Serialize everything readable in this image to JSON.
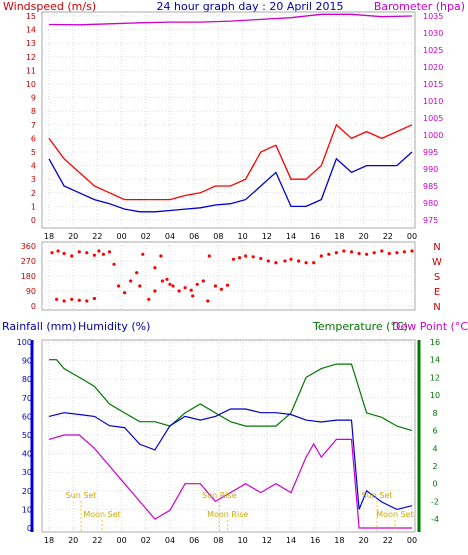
{
  "chart_data": [
    {
      "type": "line",
      "title": "24 hour graph day : 20 April 2015",
      "left_axis_label": "Windspeed (m/s)",
      "right_axis_label": "Barometer (hpa)",
      "x_tick_labels": [
        "18",
        "20",
        "22",
        "00",
        "02",
        "04",
        "06",
        "08",
        "10",
        "12",
        "14",
        "16",
        "18",
        "20",
        "22",
        "00"
      ],
      "left_ticks": [
        0,
        1,
        2,
        3,
        4,
        5,
        6,
        7,
        8,
        9,
        10,
        11,
        12,
        13,
        14,
        15
      ],
      "right_ticks": [
        975,
        980,
        985,
        990,
        995,
        1000,
        1005,
        1010,
        1015,
        1020,
        1025,
        1030,
        1035
      ],
      "ylim_left": [
        0,
        15
      ],
      "ylim_right": [
        975,
        1035
      ],
      "colors": {
        "gust": "#ff0000",
        "speed": "#0000cc",
        "barometer": "#cc00cc"
      },
      "series": [
        {
          "name": "Windspeed",
          "color": "#0000cc",
          "x": [
            0,
            1,
            2,
            3,
            4,
            5,
            6,
            7,
            8,
            9,
            10,
            11,
            12,
            13,
            14,
            15,
            16,
            17,
            18,
            19,
            20,
            21,
            22,
            23,
            24
          ],
          "y": [
            4.5,
            2.5,
            2,
            1.5,
            1.2,
            0.8,
            0.6,
            0.6,
            0.7,
            0.8,
            0.9,
            1.1,
            1.2,
            1.5,
            2.5,
            3.5,
            1,
            1,
            1.5,
            4.5,
            3.5,
            4,
            4,
            4,
            5
          ]
        },
        {
          "name": "Gust",
          "color": "#ff0000",
          "x": [
            0,
            1,
            2,
            3,
            4,
            5,
            6,
            7,
            8,
            9,
            10,
            11,
            12,
            13,
            14,
            15,
            16,
            17,
            18,
            19,
            20,
            21,
            22,
            23,
            24
          ],
          "y": [
            6,
            4.5,
            3.5,
            2.5,
            2,
            1.5,
            1.5,
            1.5,
            1.5,
            1.8,
            2,
            2.5,
            2.5,
            3,
            5,
            5.5,
            3,
            3,
            4,
            7,
            6,
            6.5,
            6,
            6.5,
            7
          ]
        },
        {
          "name": "Barometer",
          "color": "#cc00cc",
          "x": [
            0,
            2,
            4,
            6,
            8,
            10,
            12,
            14,
            16,
            18,
            20,
            22,
            24
          ],
          "y": [
            1032.5,
            1032.4,
            1032.7,
            1033,
            1033.2,
            1033.2,
            1033.5,
            1034,
            1034.5,
            1035.5,
            1035.5,
            1034.8,
            1035
          ]
        }
      ]
    },
    {
      "type": "scatter",
      "y_tick_labels": [
        360,
        270,
        180,
        90,
        0
      ],
      "direction_labels": [
        "N",
        "W",
        "S",
        "E",
        "N"
      ],
      "ylim": [
        0,
        360
      ],
      "series": [
        {
          "name": "Wind direction",
          "color": "#ff0000",
          "x": [
            0.2,
            0.6,
            1,
            1.5,
            2,
            2.5,
            3,
            3.3,
            3.6,
            4,
            4.3,
            4.6,
            5,
            5.4,
            5.8,
            6.2,
            6.6,
            7,
            7.4,
            7.8,
            8.2,
            8.6,
            9,
            9.4,
            9.8,
            10.2,
            10.6,
            11,
            11.4,
            11.8,
            12.2,
            12.6,
            13,
            13.5,
            14,
            14.5,
            15,
            15.6,
            16,
            16.5,
            17,
            17.5,
            18,
            18.5,
            19,
            19.5,
            20,
            20.5,
            21,
            21.5,
            22,
            22.5,
            23,
            23.5,
            24
          ],
          "y": [
            320,
            330,
            315,
            300,
            325,
            320,
            305,
            330,
            310,
            325,
            250,
            120,
            80,
            150,
            200,
            310,
            40,
            230,
            300,
            160,
            120,
            90,
            110,
            95,
            130,
            150,
            300,
            120,
            100,
            125,
            280,
            290,
            300,
            295,
            285,
            270,
            260,
            270,
            280,
            270,
            260,
            260,
            300,
            310,
            320,
            330,
            325,
            315,
            310,
            320,
            330,
            315,
            320,
            325,
            330
          ]
        },
        {
          "name": "Wind direction (low)",
          "color": "#ff0000",
          "x": [
            0.5,
            1,
            1.5,
            2,
            2.5,
            3,
            6,
            7,
            7.5,
            8,
            9.5,
            10.5
          ],
          "y": [
            40,
            30,
            40,
            35,
            30,
            45,
            120,
            90,
            150,
            130,
            60,
            30
          ]
        }
      ]
    },
    {
      "type": "line",
      "left_axis_label": "Rainfall (mm)",
      "left_axis_label2": "Humidity (%)",
      "right_axis_label": "Temperature (°C)",
      "right_axis_label2": "Dew Point (°C)",
      "x_tick_labels": [
        "18",
        "20",
        "22",
        "00",
        "02",
        "04",
        "06",
        "08",
        "10",
        "12",
        "14",
        "16",
        "18",
        "20",
        "22",
        "00"
      ],
      "left_ticks": [
        0,
        10,
        20,
        30,
        40,
        50,
        60,
        70,
        80,
        90,
        100
      ],
      "right_ticks": [
        -4,
        -2,
        0,
        2,
        4,
        6,
        8,
        10,
        12,
        14,
        16
      ],
      "ylim_left": [
        0,
        100
      ],
      "ylim_right": [
        -5,
        16
      ],
      "colors": {
        "temperature": "#007700",
        "humidity": "#0000cc",
        "dewpoint": "#cc00cc",
        "rain": "#0000cc"
      },
      "annotations": [
        {
          "text": "Sun Set",
          "x": 2.3
        },
        {
          "text": "Moon Set",
          "x": 3.8
        },
        {
          "text": "Sun Rise",
          "x": 12.2
        },
        {
          "text": "Moon Rise",
          "x": 12.8
        },
        {
          "text": "Sun Set",
          "x": 23.5
        },
        {
          "text": "Moon Set",
          "x": 25.5
        }
      ],
      "series": [
        {
          "name": "Temperature",
          "color": "#007700",
          "x": [
            0,
            0.5,
            1,
            2,
            3,
            4,
            5,
            6,
            7,
            8,
            9,
            10,
            11,
            12,
            13,
            14,
            15,
            16,
            17,
            18,
            19,
            19.5,
            20,
            21,
            22,
            23,
            24
          ],
          "y": [
            14,
            14,
            13,
            12,
            11,
            9,
            8,
            7,
            7,
            6.5,
            8,
            9,
            8,
            7,
            6.5,
            6.5,
            6.5,
            8,
            12,
            13,
            13.5,
            13.5,
            13.5,
            8,
            7.5,
            6.5,
            6
          ]
        },
        {
          "name": "Humidity",
          "color": "#0000cc",
          "x": [
            0,
            1,
            2,
            3,
            4,
            5,
            6,
            7,
            8,
            9,
            10,
            11,
            12,
            13,
            14,
            15,
            16,
            17,
            18,
            19,
            19.5,
            20,
            20.5,
            21,
            22,
            23,
            24
          ],
          "y": [
            60,
            62,
            61,
            60,
            55,
            54,
            45,
            42,
            55,
            60,
            58,
            60,
            64,
            64,
            62,
            62,
            61,
            58,
            57,
            58,
            58,
            58,
            10,
            20,
            14,
            10,
            12
          ]
        },
        {
          "name": "Dew Point",
          "color": "#cc00cc",
          "x": [
            0,
            1,
            2,
            3,
            4,
            5,
            6,
            7,
            8,
            9,
            10,
            11,
            12,
            13,
            14,
            15,
            16,
            17,
            17.5,
            18,
            19,
            19.5,
            20,
            20.5,
            21,
            22,
            23,
            24
          ],
          "y": [
            5,
            5.5,
            5.5,
            4,
            2,
            0,
            -2,
            -4,
            -3,
            0,
            0,
            -2,
            -1,
            0,
            -1,
            0,
            -1,
            3,
            4.5,
            3,
            5,
            5,
            5,
            -5,
            -5,
            -5,
            -5,
            -5
          ]
        }
      ]
    }
  ]
}
